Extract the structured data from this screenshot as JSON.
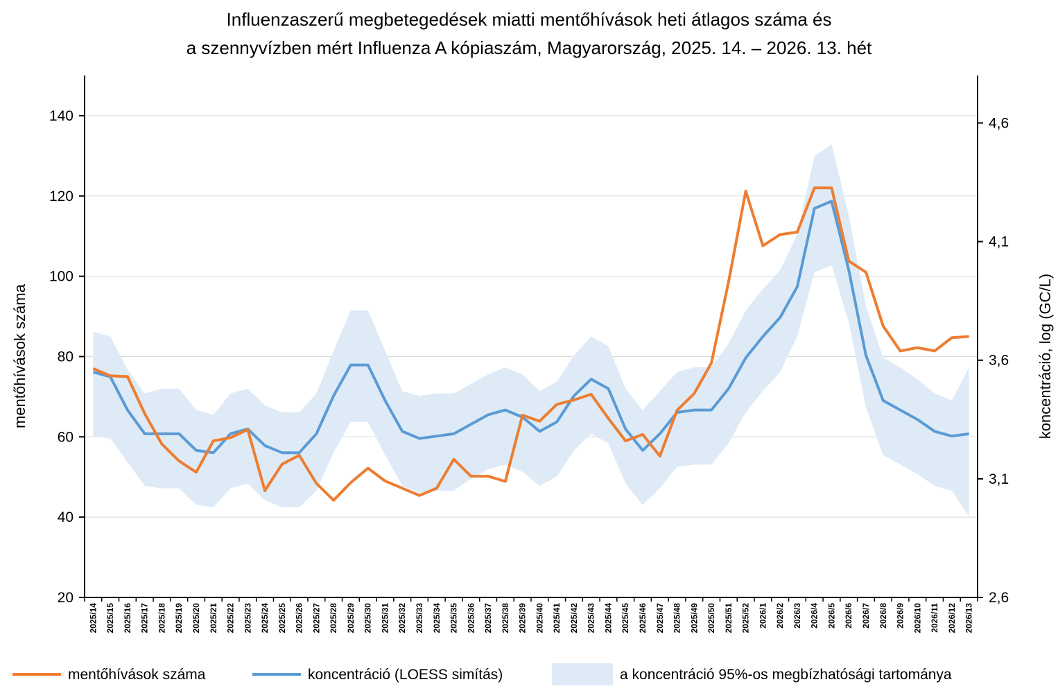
{
  "chart_data": {
    "type": "line",
    "title_line1": "Influenzaszerű megbetegedések miatti mentőhívások heti átlagos száma és",
    "title_line2": "a szennyvízben mért Influenza A kópiaszám, Magyarország, 2025. 14. – 2026. 13. hét",
    "ylabel": "mentőhívások száma",
    "y2label": "koncentráció, log (GC/L)",
    "ylim": [
      20,
      150
    ],
    "y2lim": [
      2.6,
      4.8
    ],
    "yticks": [
      20,
      40,
      60,
      80,
      100,
      120,
      140
    ],
    "y2ticks": [
      "2,6",
      "3,1",
      "3,6",
      "4,1",
      "4,6"
    ],
    "y2tick_values": [
      2.6,
      3.1,
      3.6,
      4.1,
      4.6
    ],
    "grid": true,
    "legend_position": "bottom",
    "categories": [
      "2025/14",
      "2025/15",
      "2025/16",
      "2025/17",
      "2025/18",
      "2025/19",
      "2025/20",
      "2025/21",
      "2025/22",
      "2025/23",
      "2025/24",
      "2025/25",
      "2025/26",
      "2025/27",
      "2025/28",
      "2025/29",
      "2025/30",
      "2025/31",
      "2025/32",
      "2025/33",
      "2025/34",
      "2025/35",
      "2025/36",
      "2025/37",
      "2025/38",
      "2025/39",
      "2025/40",
      "2025/41",
      "2025/42",
      "2025/43",
      "2025/44",
      "2025/45",
      "2025/46",
      "2025/47",
      "2025/48",
      "2025/49",
      "2025/50",
      "2025/51",
      "2025/52",
      "2026/1",
      "2026/2",
      "2026/3",
      "2026/4",
      "2026/5",
      "2026/6",
      "2026/7",
      "2026/8",
      "2026/9",
      "2026/10",
      "2026/11",
      "2026/12",
      "2026/13"
    ],
    "series": [
      {
        "name": "mentőhívások száma",
        "axis": "left",
        "color": "#ED7D31",
        "values": [
          77,
          75.2,
          75,
          65.8,
          58.2,
          54,
          51.2,
          59,
          59.8,
          61.8,
          46.6,
          53.2,
          55.4,
          48.4,
          44.2,
          48.6,
          52.2,
          49,
          47.2,
          45.4,
          47.2,
          54.4,
          50.2,
          50.2,
          48.9,
          65.4,
          63.9,
          68.1,
          69.2,
          70.6,
          64.6,
          59,
          60.6,
          55.2,
          66.6,
          70.8,
          78.4,
          98.6,
          121.2,
          107.6,
          110.4,
          111,
          122,
          122,
          103.8,
          101,
          87.6,
          81.4,
          82.2,
          81.4,
          84.7,
          85
        ]
      },
      {
        "name": "koncentráció (LOESS simítás)",
        "axis": "right",
        "color": "#5B9BD5",
        "values": [
          3.55,
          3.53,
          3.39,
          3.29,
          3.29,
          3.29,
          3.22,
          3.21,
          3.29,
          3.31,
          3.24,
          3.21,
          3.21,
          3.29,
          3.45,
          3.58,
          3.58,
          3.43,
          3.3,
          3.27,
          3.28,
          3.29,
          3.33,
          3.37,
          3.39,
          3.36,
          3.3,
          3.34,
          3.45,
          3.52,
          3.48,
          3.31,
          3.22,
          3.29,
          3.38,
          3.39,
          3.39,
          3.48,
          3.61,
          3.7,
          3.78,
          3.91,
          4.24,
          4.27,
          3.98,
          3.62,
          3.43,
          3.39,
          3.35,
          3.3,
          3.28,
          3.29
        ]
      },
      {
        "name": "a koncentráció 95%-os megbízhatósági tartománya",
        "axis": "right",
        "color": "#DEEBF7",
        "lower": [
          3.28,
          3.27,
          3.17,
          3.07,
          3.06,
          3.06,
          2.99,
          2.98,
          3.06,
          3.08,
          3.01,
          2.98,
          2.98,
          3.05,
          3.21,
          3.34,
          3.34,
          3.2,
          3.07,
          3.04,
          3.05,
          3.05,
          3.1,
          3.14,
          3.16,
          3.13,
          3.07,
          3.11,
          3.22,
          3.29,
          3.25,
          3.08,
          2.99,
          3.06,
          3.15,
          3.16,
          3.16,
          3.25,
          3.38,
          3.47,
          3.55,
          3.7,
          3.97,
          4.0,
          3.76,
          3.4,
          3.2,
          3.16,
          3.12,
          3.07,
          3.05,
          2.94
        ]
      }
    ],
    "upper": [
      3.72,
      3.7,
      3.56,
      3.46,
      3.48,
      3.48,
      3.39,
      3.37,
      3.46,
      3.48,
      3.41,
      3.38,
      3.38,
      3.46,
      3.64,
      3.81,
      3.81,
      3.64,
      3.47,
      3.45,
      3.46,
      3.46,
      3.5,
      3.54,
      3.57,
      3.54,
      3.47,
      3.51,
      3.62,
      3.7,
      3.66,
      3.48,
      3.39,
      3.47,
      3.55,
      3.57,
      3.57,
      3.67,
      3.81,
      3.9,
      3.98,
      4.13,
      4.46,
      4.51,
      4.21,
      3.83,
      3.61,
      3.57,
      3.52,
      3.46,
      3.43,
      3.57
    ]
  }
}
